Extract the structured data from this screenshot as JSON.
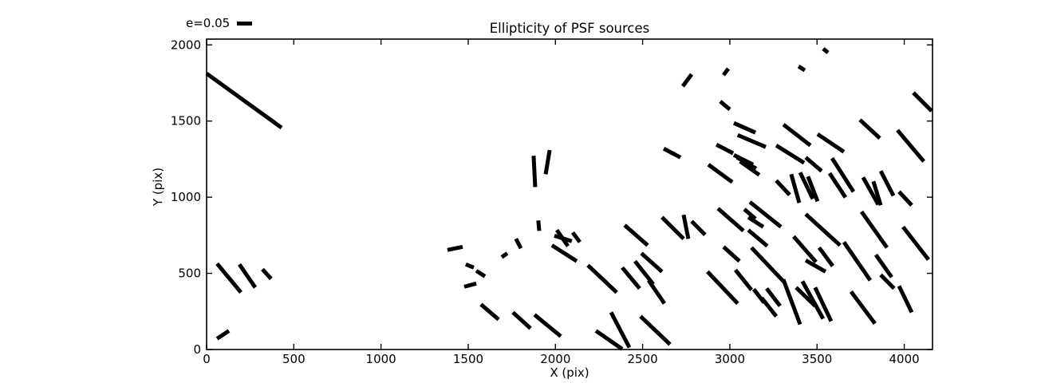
{
  "figure": {
    "background": "#ffffff",
    "line_color": "#000000",
    "axis_color": "#000000"
  },
  "legend": {
    "label": "e=0.05",
    "marker": "thick-black-line"
  },
  "chart_data": {
    "type": "line-segments (ellipticity whisker/quiver plot)",
    "title": "Ellipticity of PSF sources",
    "xlabel": "X (pix)",
    "ylabel": "Y (pix)",
    "xlim": [
      0,
      4162
    ],
    "ylim": [
      0,
      2038
    ],
    "x_ticks": [
      0,
      500,
      1000,
      1500,
      2000,
      2500,
      3000,
      3500,
      4000
    ],
    "y_ticks": [
      0,
      500,
      1000,
      1500,
      2000
    ],
    "grid": false,
    "legend_position": "above-plot-top-left",
    "segments_format": "[x1, y1, x2, y2] in data coordinates (pix)",
    "segments": [
      [
        0,
        1812,
        430,
        1456
      ],
      [
        60,
        564,
        197,
        375
      ],
      [
        188,
        559,
        279,
        407
      ],
      [
        320,
        527,
        370,
        464
      ],
      [
        60,
        71,
        128,
        123
      ],
      [
        1381,
        653,
        1468,
        674
      ],
      [
        1486,
        559,
        1532,
        538
      ],
      [
        1546,
        517,
        1596,
        480
      ],
      [
        1477,
        412,
        1546,
        433
      ],
      [
        1692,
        606,
        1724,
        632
      ],
      [
        1774,
        727,
        1802,
        664
      ],
      [
        1875,
        1272,
        1884,
        1067
      ],
      [
        1967,
        1309,
        1944,
        1151
      ],
      [
        1902,
        847,
        1907,
        779
      ],
      [
        2008,
        784,
        2072,
        679
      ],
      [
        1994,
        747,
        2094,
        711
      ],
      [
        2099,
        768,
        2140,
        705
      ],
      [
        1980,
        684,
        2122,
        580
      ],
      [
        1573,
        296,
        1674,
        197
      ],
      [
        1756,
        244,
        1857,
        139
      ],
      [
        1880,
        228,
        2031,
        87
      ],
      [
        2186,
        553,
        2351,
        375
      ],
      [
        2383,
        538,
        2483,
        401
      ],
      [
        2456,
        580,
        2561,
        428
      ],
      [
        2493,
        632,
        2611,
        511
      ],
      [
        2534,
        454,
        2625,
        302
      ],
      [
        2319,
        244,
        2424,
        13
      ],
      [
        2232,
        123,
        2383,
        3
      ],
      [
        2488,
        218,
        2657,
        34
      ],
      [
        2621,
        1319,
        2717,
        1261
      ],
      [
        2923,
        1345,
        3019,
        1288
      ],
      [
        2877,
        1214,
        3014,
        1099
      ],
      [
        2932,
        926,
        3078,
        779
      ],
      [
        3083,
        921,
        3147,
        858
      ],
      [
        2397,
        816,
        2529,
        684
      ],
      [
        2611,
        868,
        2735,
        727
      ],
      [
        2735,
        884,
        2762,
        727
      ],
      [
        2781,
        842,
        2858,
        753
      ],
      [
        2964,
        674,
        3055,
        580
      ],
      [
        3023,
        1277,
        3133,
        1214
      ],
      [
        3041,
        1261,
        3151,
        1188
      ],
      [
        3059,
        1235,
        3169,
        1146
      ],
      [
        3023,
        1487,
        3147,
        1424
      ],
      [
        3045,
        1408,
        3206,
        1330
      ],
      [
        2730,
        1728,
        2781,
        1807
      ],
      [
        2964,
        1802,
        2991,
        1844
      ],
      [
        2945,
        1629,
        3000,
        1576
      ],
      [
        3394,
        1859,
        3430,
        1833
      ],
      [
        3535,
        1975,
        3563,
        1949
      ],
      [
        4052,
        1686,
        4157,
        1566
      ],
      [
        3307,
        1477,
        3462,
        1340
      ],
      [
        3746,
        1508,
        3860,
        1387
      ],
      [
        3961,
        1440,
        4112,
        1235
      ],
      [
        3266,
        1340,
        3426,
        1225
      ],
      [
        3503,
        1414,
        3654,
        1298
      ],
      [
        3435,
        1261,
        3526,
        1172
      ],
      [
        3586,
        1256,
        3709,
        1036
      ],
      [
        3572,
        1157,
        3663,
        999
      ],
      [
        3352,
        1151,
        3398,
        963
      ],
      [
        3403,
        1162,
        3476,
        989
      ],
      [
        3448,
        1136,
        3503,
        973
      ],
      [
        3266,
        1109,
        3343,
        1015
      ],
      [
        3764,
        1130,
        3851,
        952
      ],
      [
        3823,
        1104,
        3865,
        947
      ],
      [
        3865,
        1172,
        3938,
        1010
      ],
      [
        3970,
        1036,
        4043,
        947
      ],
      [
        3115,
        968,
        3293,
        805
      ],
      [
        3106,
        868,
        3192,
        805
      ],
      [
        3106,
        784,
        3215,
        679
      ],
      [
        3435,
        889,
        3632,
        684
      ],
      [
        3366,
        742,
        3494,
        574
      ],
      [
        3512,
        669,
        3590,
        548
      ],
      [
        3755,
        905,
        3901,
        669
      ],
      [
        3993,
        805,
        4139,
        590
      ],
      [
        3124,
        669,
        3311,
        443
      ],
      [
        3211,
        401,
        3288,
        286
      ],
      [
        3183,
        338,
        3266,
        218
      ],
      [
        3137,
        396,
        3197,
        307
      ],
      [
        3307,
        459,
        3403,
        165
      ],
      [
        3380,
        407,
        3489,
        286
      ],
      [
        3416,
        448,
        3535,
        202
      ],
      [
        3489,
        407,
        3581,
        186
      ],
      [
        3435,
        585,
        3549,
        511
      ],
      [
        3654,
        705,
        3805,
        454
      ],
      [
        3695,
        380,
        3832,
        170
      ],
      [
        3837,
        622,
        3928,
        475
      ],
      [
        3865,
        490,
        3942,
        401
      ],
      [
        3970,
        417,
        4043,
        244
      ],
      [
        2872,
        511,
        3045,
        302
      ],
      [
        3032,
        522,
        3124,
        391
      ]
    ]
  }
}
